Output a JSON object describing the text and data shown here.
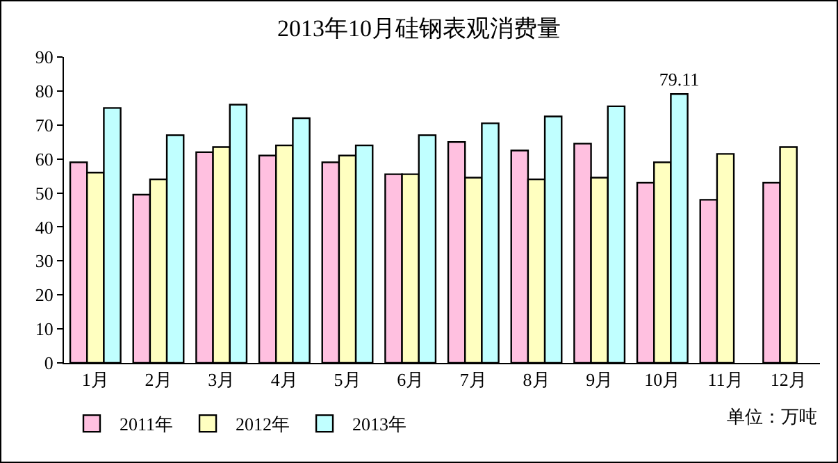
{
  "chart_data": {
    "type": "bar",
    "title": "2013年10月硅钢表观消费量",
    "categories": [
      "1月",
      "2月",
      "3月",
      "4月",
      "5月",
      "6月",
      "7月",
      "8月",
      "9月",
      "10月",
      "11月",
      "12月"
    ],
    "series": [
      {
        "name": "2011年",
        "color": "#ffc0e0",
        "values": [
          59,
          49.5,
          62,
          61,
          59,
          55.5,
          65,
          62.5,
          64.5,
          53,
          48,
          53
        ]
      },
      {
        "name": "2012年",
        "color": "#ffffc0",
        "values": [
          56,
          54,
          63.5,
          64,
          61,
          55.5,
          54.5,
          54,
          54.5,
          59,
          61.5,
          63.5
        ]
      },
      {
        "name": "2013年",
        "color": "#c0ffff",
        "values": [
          75,
          67,
          76,
          72,
          64,
          67,
          70.5,
          72.5,
          75.5,
          79.11,
          null,
          null
        ],
        "value_labels": [
          null,
          null,
          null,
          null,
          null,
          null,
          null,
          null,
          null,
          "79.11",
          null,
          null
        ]
      }
    ],
    "ylim": [
      0,
      90
    ],
    "yticks": [
      0,
      10,
      20,
      30,
      40,
      50,
      60,
      70,
      80,
      90
    ],
    "grid": false,
    "legend": "bottom",
    "annotations": [
      "单位：万吨"
    ]
  }
}
